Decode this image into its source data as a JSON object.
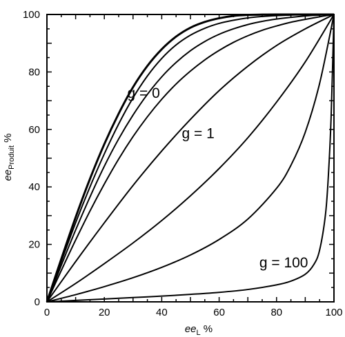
{
  "chart_data": {
    "type": "line",
    "xlabel_main": "ee",
    "xlabel_sub": "L",
    "xlabel_unit": " %",
    "ylabel_main": "ee",
    "ylabel_sub": "Produit",
    "ylabel_unit": " %",
    "xlim": [
      0,
      100
    ],
    "ylim": [
      0,
      100
    ],
    "x_ticks": [
      0,
      20,
      40,
      60,
      80,
      100
    ],
    "y_ticks": [
      0,
      20,
      40,
      60,
      80,
      100
    ],
    "grid": false,
    "annotations": [
      {
        "text": "g = 0",
        "x": 28,
        "y": 71
      },
      {
        "text": "g = 1",
        "x": 47,
        "y": 57
      },
      {
        "text": "g = 100",
        "x": 74,
        "y": 12
      }
    ],
    "series": [
      {
        "values": [
          [
            0,
            0
          ],
          [
            5,
            14.9
          ],
          [
            10,
            29.4
          ],
          [
            15,
            42.8
          ],
          [
            20,
            54.9
          ],
          [
            25,
            65.5
          ],
          [
            30,
            74.7
          ],
          [
            35,
            82.1
          ],
          [
            40,
            87.9
          ],
          [
            45,
            92.3
          ],
          [
            50,
            95.4
          ],
          [
            55,
            97.4
          ],
          [
            60,
            98.7
          ],
          [
            65,
            99.5
          ],
          [
            70,
            99.85
          ],
          [
            75,
            99.96
          ],
          [
            80,
            100
          ],
          [
            90,
            100
          ],
          [
            100,
            100
          ]
        ]
      },
      {
        "values": [
          [
            0,
            0
          ],
          [
            5,
            14
          ],
          [
            10,
            27.5
          ],
          [
            15,
            40
          ],
          [
            20,
            51.5
          ],
          [
            25,
            61.9
          ],
          [
            30,
            71
          ],
          [
            35,
            78.6
          ],
          [
            40,
            84.7
          ],
          [
            45,
            89.4
          ],
          [
            50,
            92.8
          ],
          [
            55,
            95.2
          ],
          [
            60,
            96.9
          ],
          [
            65,
            98
          ],
          [
            70,
            98.8
          ],
          [
            75,
            99.3
          ],
          [
            80,
            99.6
          ],
          [
            85,
            99.8
          ],
          [
            90,
            99.9
          ],
          [
            100,
            100
          ]
        ]
      },
      {
        "values": [
          [
            0,
            0
          ],
          [
            5,
            12.7
          ],
          [
            10,
            25
          ],
          [
            15,
            36.5
          ],
          [
            20,
            47.2
          ],
          [
            25,
            56.7
          ],
          [
            30,
            65
          ],
          [
            35,
            72.2
          ],
          [
            40,
            78.3
          ],
          [
            45,
            83.3
          ],
          [
            50,
            87.4
          ],
          [
            55,
            90.6
          ],
          [
            60,
            93.1
          ],
          [
            65,
            95
          ],
          [
            70,
            96.5
          ],
          [
            75,
            97.6
          ],
          [
            80,
            98.4
          ],
          [
            85,
            99
          ],
          [
            90,
            99.5
          ],
          [
            95,
            99.8
          ],
          [
            100,
            100
          ]
        ]
      },
      {
        "values": [
          [
            0,
            0
          ],
          [
            5,
            10.9
          ],
          [
            10,
            21.5
          ],
          [
            15,
            31.6
          ],
          [
            20,
            41
          ],
          [
            25,
            49.7
          ],
          [
            30,
            57.5
          ],
          [
            35,
            64.4
          ],
          [
            40,
            70.5
          ],
          [
            45,
            75.8
          ],
          [
            50,
            80.3
          ],
          [
            55,
            84.2
          ],
          [
            60,
            87.5
          ],
          [
            65,
            90.3
          ],
          [
            70,
            92.6
          ],
          [
            75,
            94.5
          ],
          [
            80,
            96
          ],
          [
            85,
            97.3
          ],
          [
            90,
            98.3
          ],
          [
            95,
            99.2
          ],
          [
            100,
            100
          ]
        ]
      },
      {
        "values": [
          [
            0,
            0
          ],
          [
            10,
            14
          ],
          [
            20,
            27.5
          ],
          [
            30,
            40.5
          ],
          [
            40,
            52.5
          ],
          [
            50,
            63.5
          ],
          [
            60,
            73.5
          ],
          [
            70,
            82
          ],
          [
            80,
            89.2
          ],
          [
            90,
            95
          ],
          [
            100,
            100
          ]
        ]
      },
      {
        "values": [
          [
            0,
            0
          ],
          [
            10,
            6.4
          ],
          [
            20,
            13.3
          ],
          [
            30,
            20.5
          ],
          [
            40,
            28.3
          ],
          [
            50,
            36.9
          ],
          [
            60,
            46.4
          ],
          [
            70,
            57.1
          ],
          [
            80,
            69.5
          ],
          [
            90,
            83.5
          ],
          [
            100,
            100
          ]
        ]
      },
      {
        "values": [
          [
            0,
            0
          ],
          [
            10,
            2.5
          ],
          [
            20,
            5.3
          ],
          [
            30,
            8.4
          ],
          [
            40,
            12
          ],
          [
            50,
            16.3
          ],
          [
            60,
            21.7
          ],
          [
            70,
            28.8
          ],
          [
            80,
            39.5
          ],
          [
            85,
            47.5
          ],
          [
            90,
            59
          ],
          [
            95,
            76
          ],
          [
            100,
            100
          ]
        ]
      },
      {
        "values": [
          [
            0,
            0
          ],
          [
            10,
            0.5
          ],
          [
            20,
            1
          ],
          [
            30,
            1.5
          ],
          [
            40,
            2
          ],
          [
            50,
            2.6
          ],
          [
            60,
            3.3
          ],
          [
            70,
            4.3
          ],
          [
            80,
            5.9
          ],
          [
            85,
            7.2
          ],
          [
            90,
            9.6
          ],
          [
            93,
            13
          ],
          [
            95,
            18
          ],
          [
            97,
            30
          ],
          [
            98,
            43
          ],
          [
            99,
            64
          ],
          [
            100,
            100
          ]
        ]
      }
    ]
  }
}
